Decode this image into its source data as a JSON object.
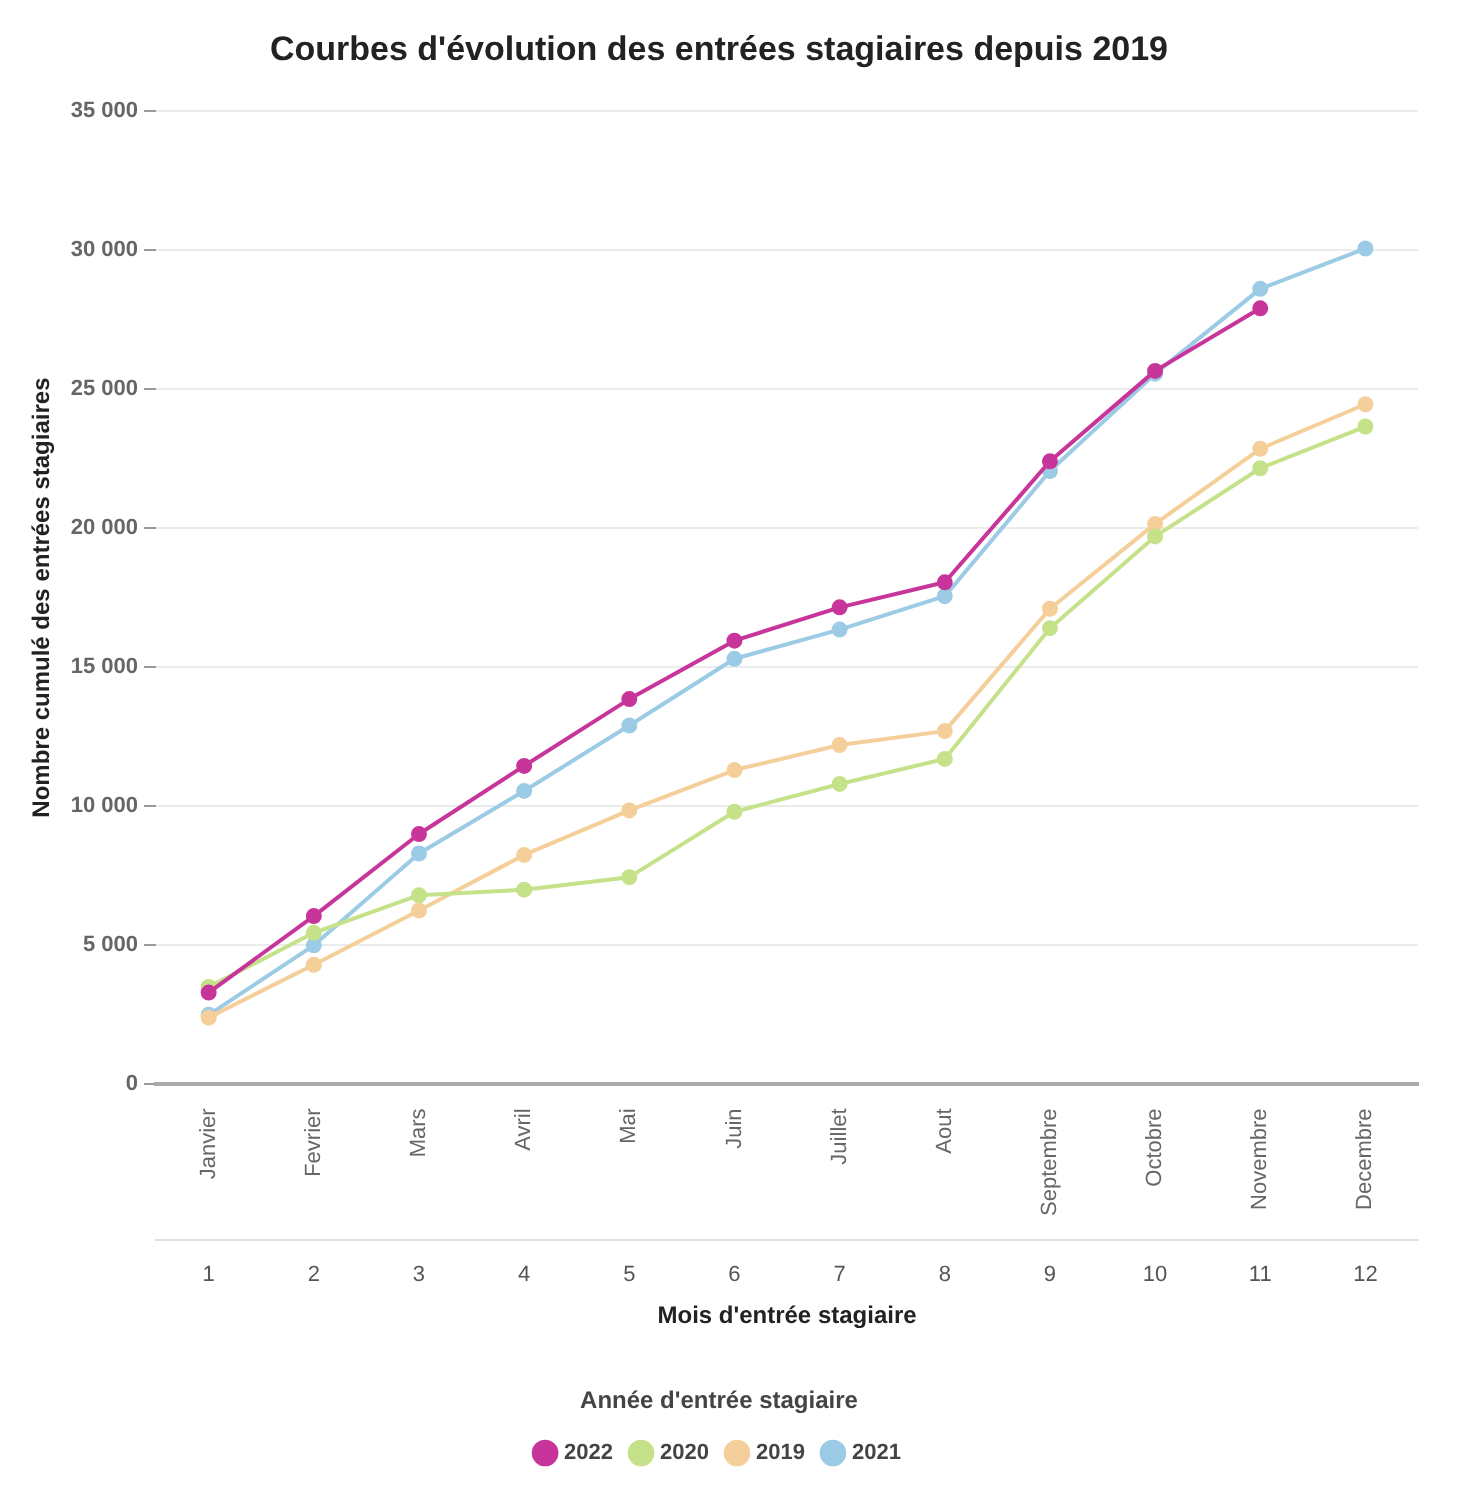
{
  "chart_data": {
    "type": "line",
    "title": "Courbes d'évolution des entrées stagiaires depuis 2019",
    "xlabel": "Mois d'entrée stagiaire",
    "ylabel": "Nombre cumulé des entrées stagiaires",
    "legend_title": "Année d'entrée stagiaire",
    "categories": [
      "Janvier",
      "Fevrier",
      "Mars",
      "Avril",
      "Mai",
      "Juin",
      "Juillet",
      "Aout",
      "Septembre",
      "Octobre",
      "Novembre",
      "Decembre"
    ],
    "x2lim": [
      0.5,
      12.5
    ],
    "x2ticks": [
      1,
      2,
      3,
      4,
      5,
      6,
      7,
      8,
      9,
      10,
      11,
      12
    ],
    "ylim": [
      0,
      35000
    ],
    "yticks": [
      0,
      {
        "value": 5000,
        "label": "5 000"
      },
      {
        "value": 10000,
        "label": "10 000"
      },
      {
        "value": 15000,
        "label": "15 000"
      },
      {
        "value": 20000,
        "label": "20 000"
      },
      {
        "value": 25000,
        "label": "25 000"
      },
      {
        "value": 30000,
        "label": "30 000"
      },
      {
        "value": 35000,
        "label": "35 000"
      }
    ],
    "series": [
      {
        "name": "2022",
        "color": "#c8359a",
        "values": [
          3300,
          6050,
          9000,
          11450,
          13850,
          15950,
          17150,
          18050,
          22400,
          25650,
          27900,
          null
        ]
      },
      {
        "name": "2020",
        "color": "#c5e28a",
        "values": [
          3500,
          5450,
          6800,
          7000,
          7450,
          9800,
          10800,
          11700,
          16400,
          19700,
          22150,
          23650
        ]
      },
      {
        "name": "2019",
        "color": "#f5cf9a",
        "values": [
          2400,
          4300,
          6250,
          8250,
          9850,
          11300,
          12200,
          12700,
          17100,
          20150,
          22850,
          24450
        ]
      },
      {
        "name": "2021",
        "color": "#9ccbe6",
        "values": [
          2500,
          5000,
          8300,
          10550,
          12900,
          15300,
          16350,
          17550,
          22050,
          25550,
          28600,
          30050
        ]
      }
    ],
    "grid": "y",
    "legend": "bottom",
    "marker": "circle",
    "line_style": "solid"
  }
}
